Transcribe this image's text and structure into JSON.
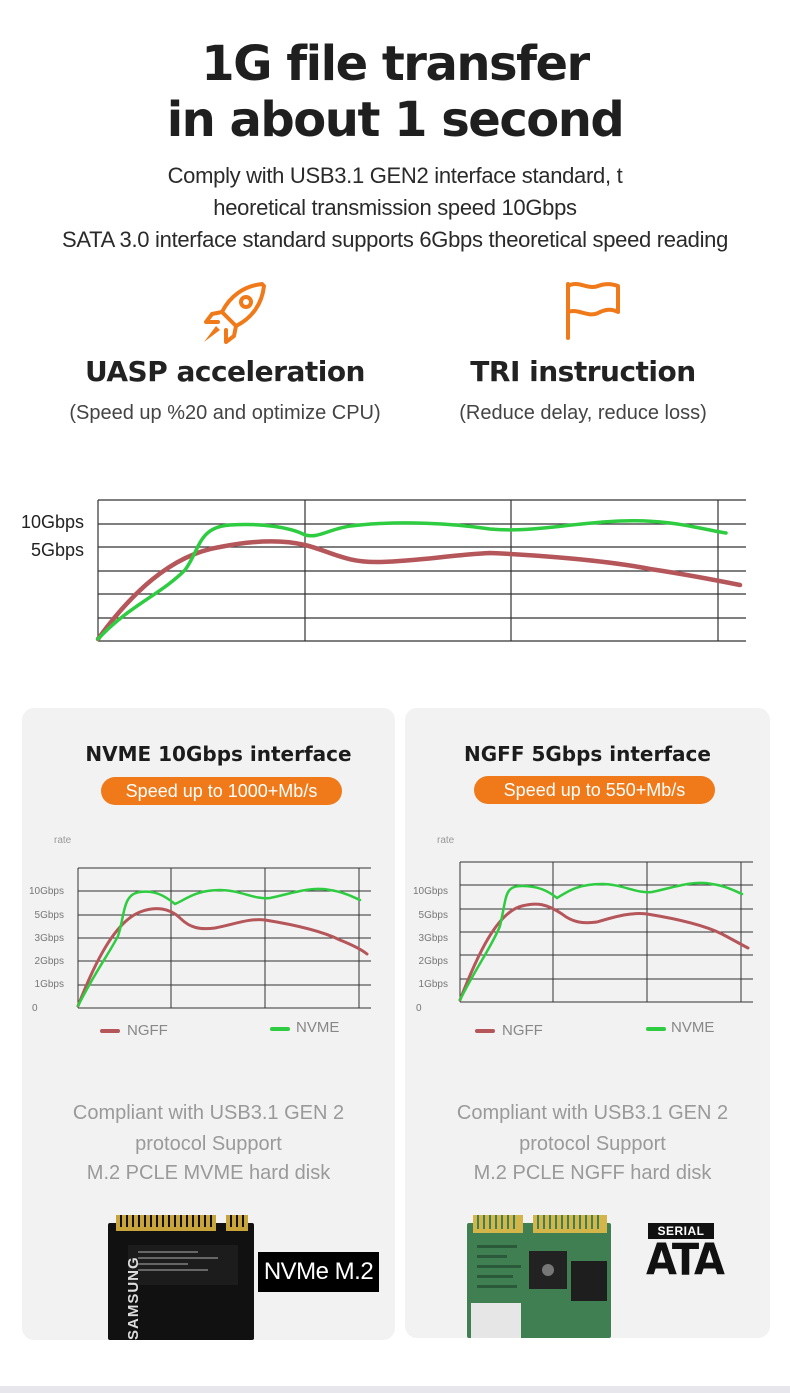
{
  "headline": {
    "line1": "1G file transfer",
    "line2": "in about 1 second"
  },
  "sublines": [
    "Comply with USB3.1 GEN2 interface standard, t",
    "heoretical transmission speed 10Gbps",
    "SATA 3.0 interface standard supports 6Gbps theoretical speed reading"
  ],
  "features": [
    {
      "title": "UASP acceleration",
      "desc": "(Speed up %20 and optimize CPU)",
      "icon": "rocket-icon"
    },
    {
      "title": "TRI instruction",
      "desc": "(Reduce delay, reduce loss)",
      "icon": "flag-icon"
    }
  ],
  "colors": {
    "accent": "#f07a1a",
    "green": "#2ecc40",
    "red": "#b5565a",
    "panel": "#f2f2f2"
  },
  "main_chart": {
    "y_labels": [
      "10Gbps",
      "5Gbps"
    ]
  },
  "panels": [
    {
      "title": "NVME 10Gbps interface",
      "badge": "Speed up to 1000+Mb/s",
      "axis_title": "rate",
      "y_labels": [
        "10Gbps",
        "5Gbps",
        "3Gbps",
        "2Gbps",
        "1Gbps",
        "0"
      ],
      "legend": [
        "NGFF",
        "NVME"
      ],
      "text": [
        "Compliant with USB3.1 GEN 2",
        "protocol Support",
        "M.2 PCLE MVME hard disk"
      ],
      "image_label": "NVMe M.2",
      "chip_brand": "SAMSUNG"
    },
    {
      "title": "NGFF 5Gbps interface",
      "badge": "Speed up to 550+Mb/s",
      "axis_title": "rate",
      "y_labels": [
        "10Gbps",
        "5Gbps",
        "3Gbps",
        "2Gbps",
        "1Gbps",
        "0"
      ],
      "legend": [
        "NGFF",
        "NVME"
      ],
      "text": [
        "Compliant with USB3.1 GEN 2",
        "protocol Support",
        "M.2 PCLE NGFF hard disk"
      ],
      "logo_top": "SERIAL",
      "logo_bottom": "ATA"
    }
  ]
}
